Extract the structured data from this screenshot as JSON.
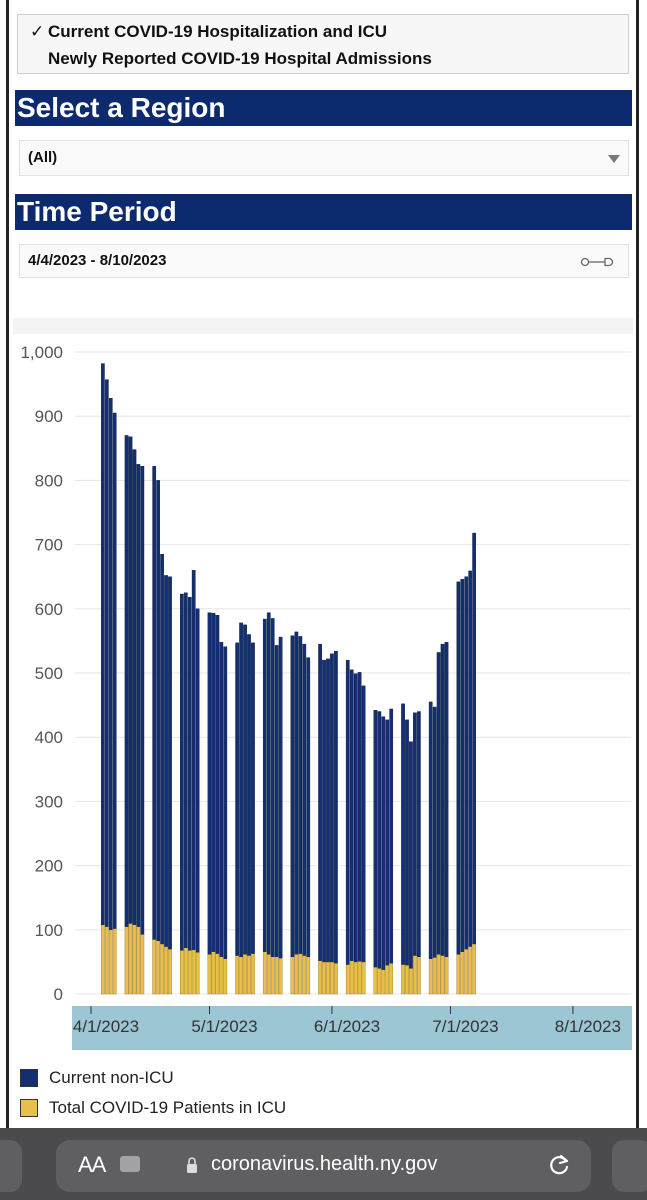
{
  "metrics": [
    {
      "label": "Current COVID-19 Hospitalization and ICU",
      "checked": "✓"
    },
    {
      "label": "Newly Reported COVID-19 Hospital Admissions",
      "checked": ""
    }
  ],
  "region": {
    "heading": "Select a Region",
    "value": "(All)"
  },
  "period": {
    "heading": "Time Period",
    "value": "4/4/2023 - 8/10/2023"
  },
  "chart_data": {
    "type": "bar",
    "stacked": true,
    "y_ticks": [
      "1,000",
      "900",
      "800",
      "700",
      "600",
      "500",
      "400",
      "300",
      "200",
      "100",
      "0"
    ],
    "ylim": [
      0,
      1000
    ],
    "x_tick_labels": [
      "4/1/2023",
      "5/1/2023",
      "6/1/2023",
      "7/1/2023",
      "8/1/2023"
    ],
    "x_range": [
      "4/4/2023",
      "8/10/2023"
    ],
    "legend": [
      {
        "name": "Current non-ICU",
        "color": "#142f6f"
      },
      {
        "name": "Total COVID-19 Patients in ICU",
        "color": "#e8bf4a"
      }
    ],
    "series": [
      {
        "name": "Total COVID-19 Patients in ICU",
        "color": "#e8bf4a",
        "values": [
          108,
          105,
          100,
          102,
          105,
          110,
          108,
          105,
          93,
          85,
          83,
          78,
          74,
          70,
          68,
          72,
          68,
          69,
          65,
          62,
          66,
          63,
          58,
          55,
          60,
          58,
          62,
          60,
          63,
          66,
          62,
          58,
          58,
          56,
          58,
          62,
          63,
          60,
          58,
          52,
          50,
          50,
          50,
          48,
          46,
          52,
          50,
          51,
          50,
          42,
          40,
          38,
          45,
          48,
          46,
          45,
          40,
          60,
          58,
          55,
          57,
          62,
          60,
          58,
          62,
          66,
          70,
          74,
          78
        ]
      },
      {
        "name": "Current non-ICU",
        "color": "#142f6f",
        "values": [
          874,
          852,
          828,
          803,
          765,
          758,
          740,
          720,
          729,
          737,
          717,
          607,
          578,
          580,
          555,
          553,
          550,
          591,
          535,
          532,
          527,
          527,
          490,
          486,
          487,
          520,
          513,
          500,
          484,
          518,
          532,
          527,
          485,
          500,
          500,
          502,
          494,
          485,
          466,
          493,
          470,
          472,
          480,
          486,
          474,
          453,
          449,
          450,
          430,
          400,
          400,
          394,
          382,
          396,
          406,
          382,
          353,
          378,
          382,
          400,
          390,
          470,
          485,
          490,
          580,
          580,
          580,
          585,
          640
        ]
      }
    ]
  },
  "legend_labels": {
    "non_icu": "Current non-ICU",
    "icu": "Total COVID-19 Patients in ICU"
  },
  "browser": {
    "aa": "AA",
    "url": "coronavirus.health.ny.gov"
  }
}
